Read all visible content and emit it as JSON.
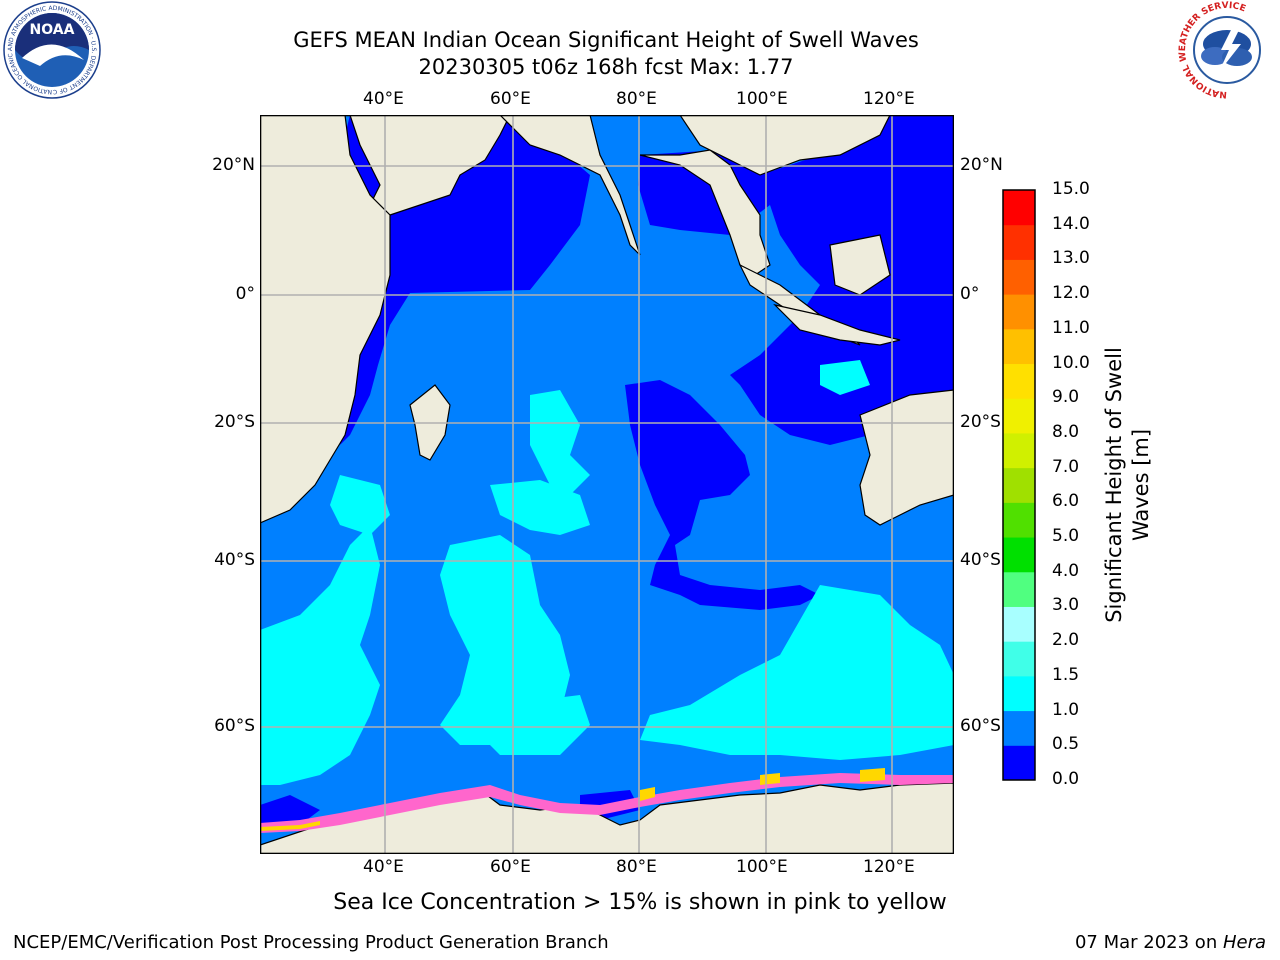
{
  "title": {
    "line1": "GEFS MEAN Indian Ocean Significant Height of Swell Waves",
    "line2": "20230305 t06z 168h fcst   Max: 1.77"
  },
  "axes": {
    "lon_labels": [
      "40°E",
      "60°E",
      "80°E",
      "100°E",
      "120°E"
    ],
    "lat_labels": [
      "20°N",
      "0°",
      "20°S",
      "40°S",
      "60°S"
    ]
  },
  "colorbar": {
    "title_line1": "Significant Height of Swell",
    "title_line2": "Waves [m]",
    "ticks": [
      "0.0",
      "0.5",
      "1.0",
      "1.5",
      "2.0",
      "3.0",
      "4.0",
      "5.0",
      "6.0",
      "7.0",
      "8.0",
      "9.0",
      "10.0",
      "11.0",
      "12.0",
      "13.0",
      "14.0",
      "15.0"
    ],
    "colors": [
      "#0000ff",
      "#0080ff",
      "#00ffff",
      "#40ffe8",
      "#a8ffff",
      "#50ff80",
      "#00e000",
      "#50e000",
      "#a0e000",
      "#d0f000",
      "#f0f000",
      "#ffe000",
      "#ffc000",
      "#ff9000",
      "#ff6000",
      "#ff3000",
      "#ff0000"
    ]
  },
  "map_colors": {
    "land": "#eeecdc",
    "band_0_0_5": "#0000ff",
    "band_0_5_1_0": "#0080ff",
    "band_1_0_1_5": "#00ffff",
    "ice_pink": "#ff66cc",
    "ice_yellow": "#ffd700"
  },
  "note": "Sea Ice Concentration > 15% is shown in pink to yellow",
  "footer": {
    "left": "NCEP/EMC/Verification Post Processing Product Generation Branch",
    "right_prefix": "07 Mar 2023 on ",
    "right_italic": "Hera"
  },
  "logos": {
    "noaa_text": "NOAA",
    "noaa_ring": "NATIONAL OCEANIC AND ATMOSPHERIC ADMINISTRATION · U.S. DEPARTMENT OF COMMERCE",
    "nws_ring": "NATIONAL WEATHER SERVICE"
  }
}
